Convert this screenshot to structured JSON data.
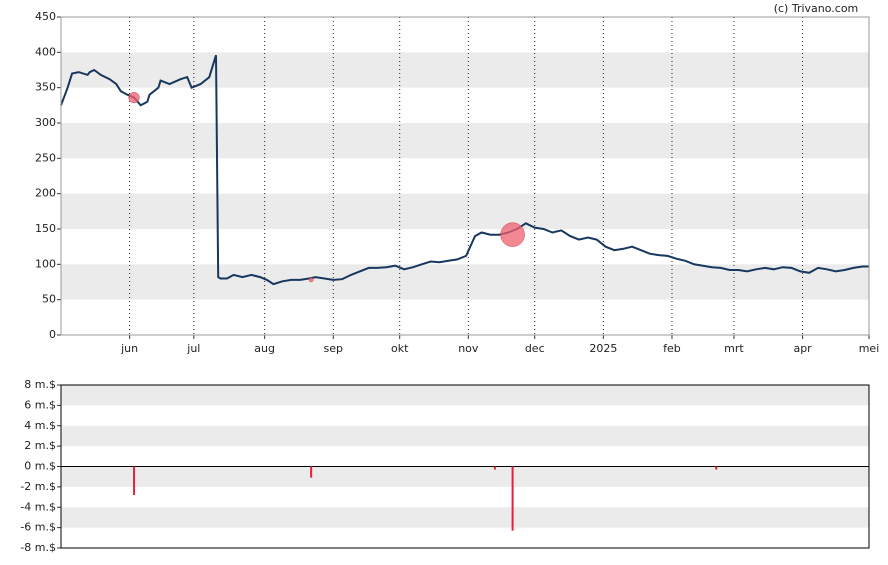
{
  "credit": "(c) Trivano.com",
  "chart_data": [
    {
      "type": "line",
      "xlim": [
        0,
        365
      ],
      "xticks": [
        {
          "value": 31,
          "label": "jun"
        },
        {
          "value": 60,
          "label": "jul"
        },
        {
          "value": 92,
          "label": "aug"
        },
        {
          "value": 123,
          "label": "sep"
        },
        {
          "value": 153,
          "label": "okt"
        },
        {
          "value": 184,
          "label": "nov"
        },
        {
          "value": 214,
          "label": "dec"
        },
        {
          "value": 245,
          "label": "2025"
        },
        {
          "value": 276,
          "label": "feb"
        },
        {
          "value": 304,
          "label": "mrt"
        },
        {
          "value": 335,
          "label": "apr"
        },
        {
          "value": 365,
          "label": "mei"
        }
      ],
      "ylim": [
        0,
        450
      ],
      "yticks": [
        0,
        50,
        100,
        150,
        200,
        250,
        300,
        350,
        400,
        450
      ],
      "grid": true,
      "x": [
        0,
        3,
        5,
        8,
        12,
        13,
        15,
        18,
        22,
        25,
        27,
        30,
        33,
        36,
        39,
        40,
        42,
        44,
        45,
        49,
        54,
        57,
        59,
        63,
        67,
        70,
        71,
        72,
        75,
        78,
        82,
        86,
        90,
        93,
        96,
        100,
        104,
        108,
        112,
        115,
        119,
        123,
        127,
        131,
        135,
        139,
        143,
        147,
        151,
        155,
        159,
        163,
        167,
        171,
        175,
        179,
        183,
        187,
        190,
        194,
        198,
        202,
        206,
        210,
        214,
        218,
        222,
        226,
        230,
        234,
        238,
        242,
        246,
        250,
        254,
        258,
        262,
        266,
        270,
        274,
        278,
        282,
        286,
        290,
        294,
        298,
        302,
        306,
        310,
        314,
        318,
        322,
        326,
        330,
        334,
        338,
        342,
        346,
        350,
        354,
        358,
        362,
        365
      ],
      "series": [
        {
          "color": "#17375e",
          "values": [
            325,
            350,
            370,
            372,
            368,
            372,
            375,
            368,
            362,
            355,
            345,
            340,
            336,
            325,
            330,
            340,
            345,
            350,
            360,
            355,
            362,
            365,
            350,
            355,
            365,
            396,
            82,
            80,
            80,
            85,
            82,
            85,
            82,
            78,
            72,
            76,
            78,
            78,
            80,
            82,
            80,
            78,
            79,
            85,
            90,
            95,
            95,
            96,
            98,
            93,
            96,
            100,
            104,
            103,
            105,
            107,
            112,
            140,
            145,
            142,
            142,
            145,
            150,
            158,
            152,
            150,
            145,
            148,
            140,
            135,
            138,
            135,
            125,
            120,
            122,
            125,
            120,
            115,
            113,
            112,
            108,
            105,
            100,
            98,
            96,
            95,
            92,
            92,
            90,
            93,
            95,
            93,
            96,
            95,
            90,
            88,
            95,
            93,
            90,
            92,
            95,
            97,
            97
          ]
        }
      ],
      "markers": {
        "color": "#f0606e",
        "x": [
          33,
          113,
          204
        ],
        "values": [
          336,
          78,
          142
        ],
        "sizes": [
          2.8,
          1.1,
          6.3
        ]
      }
    },
    {
      "type": "bar",
      "xlim": [
        0,
        365
      ],
      "ylim": [
        -8,
        8
      ],
      "yticks": [
        {
          "value": -8,
          "label": "-8 m.$"
        },
        {
          "value": -6,
          "label": "-6 m.$"
        },
        {
          "value": -4,
          "label": "-4 m.$"
        },
        {
          "value": -2,
          "label": "-2 m.$"
        },
        {
          "value": 0,
          "label": "0 m.$"
        },
        {
          "value": 2,
          "label": "2 m.$"
        },
        {
          "value": 4,
          "label": "4 m.$"
        },
        {
          "value": 6,
          "label": "6 m.$"
        },
        {
          "value": 8,
          "label": "8 m.$"
        }
      ],
      "grid": true,
      "color": "#e8203a",
      "x": [
        33,
        113,
        196,
        204,
        296
      ],
      "values": [
        -2.8,
        -1.1,
        -0.3,
        -6.3,
        -0.3
      ]
    }
  ]
}
